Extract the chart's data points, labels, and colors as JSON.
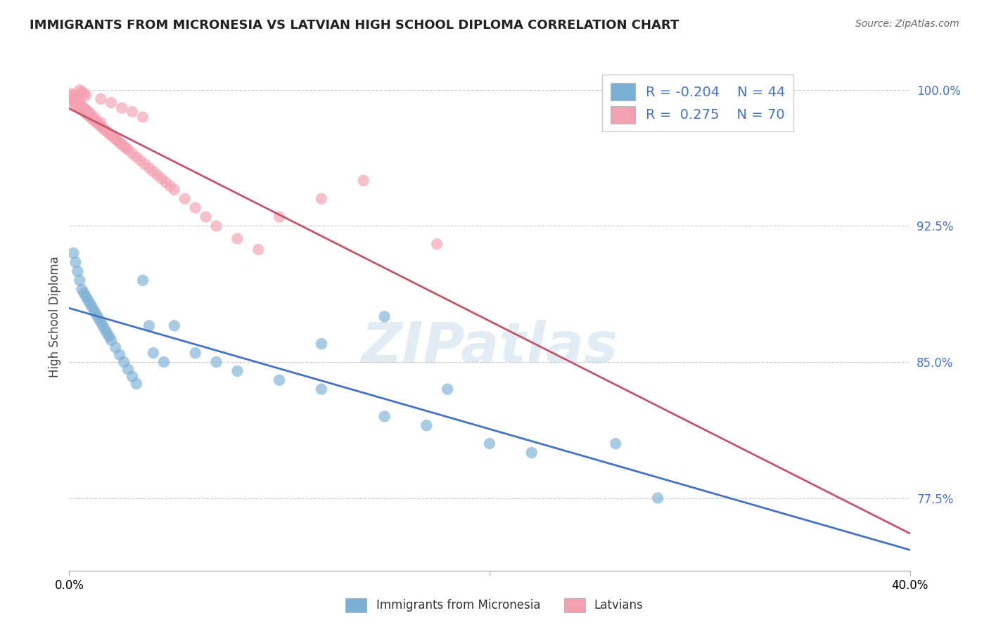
{
  "title": "IMMIGRANTS FROM MICRONESIA VS LATVIAN HIGH SCHOOL DIPLOMA CORRELATION CHART",
  "source": "Source: ZipAtlas.com",
  "ylabel": "High School Diploma",
  "xlim": [
    0.0,
    0.4
  ],
  "ylim": [
    0.735,
    1.015
  ],
  "legend_r1": "R = -0.204",
  "legend_n1": "N = 44",
  "legend_r2": "R =  0.275",
  "legend_n2": "N = 70",
  "color_blue": "#7BAFD4",
  "color_pink": "#F4A0B0",
  "color_line_blue": "#4472C4",
  "color_line_pink": "#C4546A",
  "watermark": "ZIPatlas",
  "blue_x": [
    0.002,
    0.003,
    0.004,
    0.005,
    0.006,
    0.007,
    0.008,
    0.009,
    0.01,
    0.011,
    0.012,
    0.013,
    0.014,
    0.015,
    0.016,
    0.017,
    0.018,
    0.019,
    0.02,
    0.022,
    0.024,
    0.026,
    0.028,
    0.03,
    0.032,
    0.035,
    0.038,
    0.04,
    0.045,
    0.05,
    0.06,
    0.07,
    0.08,
    0.1,
    0.12,
    0.15,
    0.17,
    0.2,
    0.22,
    0.28,
    0.15,
    0.18,
    0.26,
    0.12
  ],
  "blue_y": [
    0.91,
    0.905,
    0.9,
    0.895,
    0.89,
    0.888,
    0.886,
    0.884,
    0.882,
    0.88,
    0.878,
    0.876,
    0.874,
    0.872,
    0.87,
    0.868,
    0.866,
    0.864,
    0.862,
    0.858,
    0.854,
    0.85,
    0.846,
    0.842,
    0.838,
    0.895,
    0.87,
    0.855,
    0.85,
    0.87,
    0.855,
    0.85,
    0.845,
    0.84,
    0.835,
    0.82,
    0.815,
    0.805,
    0.8,
    0.775,
    0.875,
    0.835,
    0.805,
    0.86
  ],
  "pink_x": [
    0.001,
    0.001,
    0.002,
    0.002,
    0.003,
    0.003,
    0.004,
    0.004,
    0.005,
    0.005,
    0.006,
    0.006,
    0.007,
    0.007,
    0.008,
    0.008,
    0.009,
    0.009,
    0.01,
    0.01,
    0.011,
    0.012,
    0.012,
    0.013,
    0.014,
    0.015,
    0.015,
    0.016,
    0.017,
    0.018,
    0.019,
    0.02,
    0.021,
    0.022,
    0.023,
    0.024,
    0.025,
    0.026,
    0.027,
    0.028,
    0.03,
    0.032,
    0.034,
    0.036,
    0.038,
    0.04,
    0.042,
    0.044,
    0.046,
    0.048,
    0.05,
    0.055,
    0.06,
    0.065,
    0.07,
    0.08,
    0.09,
    0.1,
    0.12,
    0.14,
    0.005,
    0.006,
    0.007,
    0.008,
    0.015,
    0.02,
    0.025,
    0.03,
    0.035,
    0.175
  ],
  "pink_y": [
    0.998,
    0.995,
    0.997,
    0.993,
    0.996,
    0.992,
    0.994,
    0.991,
    0.993,
    0.99,
    0.991,
    0.989,
    0.99,
    0.988,
    0.989,
    0.987,
    0.988,
    0.986,
    0.987,
    0.985,
    0.984,
    0.985,
    0.983,
    0.982,
    0.981,
    0.982,
    0.98,
    0.979,
    0.978,
    0.977,
    0.976,
    0.975,
    0.974,
    0.973,
    0.972,
    0.971,
    0.97,
    0.969,
    0.968,
    0.967,
    0.965,
    0.963,
    0.961,
    0.959,
    0.957,
    0.955,
    0.953,
    0.951,
    0.949,
    0.947,
    0.945,
    0.94,
    0.935,
    0.93,
    0.925,
    0.918,
    0.912,
    0.93,
    0.94,
    0.95,
    1.0,
    0.999,
    0.998,
    0.997,
    0.995,
    0.993,
    0.99,
    0.988,
    0.985,
    0.915
  ],
  "ytick_positions": [
    0.775,
    0.85,
    0.925,
    1.0
  ],
  "ytick_labels": [
    "77.5%",
    "85.0%",
    "92.5%",
    "100.0%"
  ]
}
